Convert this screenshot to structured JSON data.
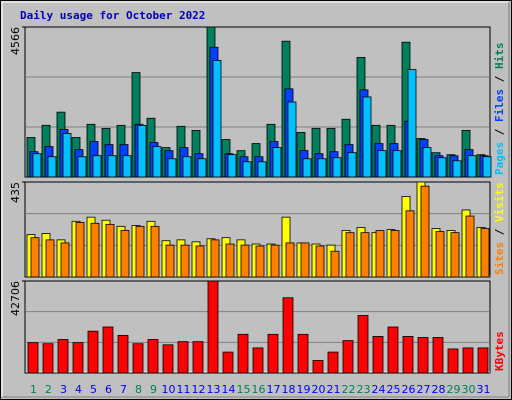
{
  "title": "Daily usage for October 2022",
  "chart_data": [
    {
      "type": "bar",
      "ylim": [
        0,
        4566
      ],
      "yticks": [
        4566
      ],
      "legend_separator": " / ",
      "series": [
        {
          "name": "Hits",
          "color": "#00805c",
          "values": [
            1203,
            1573,
            1974,
            1203,
            1604,
            1481,
            1573,
            3178,
            1789,
            895,
            1543,
            1419,
            4566,
            1141,
            802,
            1018,
            1604,
            4134,
            1357,
            1481,
            1481,
            1758,
            3640,
            1573,
            1573,
            4103,
            1172,
            740,
            679,
            1419,
            679
          ]
        },
        {
          "name": "Files",
          "color": "#0040ff",
          "values": [
            771,
            925,
            1450,
            833,
            1080,
            987,
            987,
            1604,
            1049,
            802,
            895,
            709,
            3949,
            709,
            617,
            617,
            1080,
            2684,
            802,
            709,
            771,
            987,
            2653,
            1018,
            1018,
            1697,
            1141,
            648,
            648,
            833,
            648
          ]
        },
        {
          "name": "Pages",
          "color": "#00c0ff",
          "values": [
            709,
            617,
            1327,
            617,
            648,
            648,
            648,
            1573,
            925,
            555,
            617,
            555,
            3548,
            679,
            463,
            463,
            895,
            2283,
            555,
            555,
            586,
            740,
            2437,
            802,
            802,
            3270,
            895,
            586,
            494,
            648,
            617
          ]
        }
      ]
    },
    {
      "type": "bar",
      "ylim": [
        0,
        435
      ],
      "yticks": [
        435
      ],
      "legend_separator": " / ",
      "series": [
        {
          "name": "Visits",
          "color": "#ffff00",
          "values": [
            194,
            199,
            170,
            255,
            274,
            260,
            232,
            236,
            255,
            166,
            170,
            161,
            175,
            180,
            170,
            151,
            151,
            274,
            156,
            151,
            146,
            213,
            227,
            203,
            217,
            369,
            435,
            222,
            213,
            307,
            227
          ]
        },
        {
          "name": "Sites",
          "color": "#ff8000",
          "values": [
            180,
            170,
            156,
            250,
            246,
            241,
            213,
            232,
            232,
            146,
            146,
            142,
            170,
            151,
            146,
            142,
            146,
            156,
            156,
            142,
            118,
            203,
            203,
            213,
            213,
            303,
            416,
            208,
            203,
            279,
            222
          ]
        }
      ]
    },
    {
      "type": "bar",
      "ylim": [
        0,
        42706
      ],
      "yticks": [
        42706
      ],
      "categories": [
        "1",
        "2",
        "3",
        "4",
        "5",
        "6",
        "7",
        "8",
        "9",
        "10",
        "11",
        "12",
        "13",
        "14",
        "15",
        "16",
        "17",
        "18",
        "19",
        "20",
        "21",
        "22",
        "23",
        "24",
        "25",
        "26",
        "27",
        "28",
        "29",
        "30",
        "31"
      ],
      "category_colors": [
        "#00805c",
        "#00805c",
        "#0000ff",
        "#0000ff",
        "#0000ff",
        "#0000ff",
        "#0000ff",
        "#00805c",
        "#00805c",
        "#0000ff",
        "#0000ff",
        "#0000ff",
        "#0000ff",
        "#0000ff",
        "#00805c",
        "#00805c",
        "#0000ff",
        "#0000ff",
        "#0000ff",
        "#0000ff",
        "#0000ff",
        "#00805c",
        "#00805c",
        "#0000ff",
        "#0000ff",
        "#0000ff",
        "#0000ff",
        "#0000ff",
        "#00805c",
        "#00805c",
        "#0000ff"
      ],
      "series": [
        {
          "name": "KBytes",
          "color": "#ff0000",
          "values": [
            14074,
            13589,
            15530,
            14074,
            19412,
            21353,
            17471,
            13589,
            15530,
            13103,
            14559,
            14559,
            42706,
            9706,
            17956,
            11647,
            17956,
            34942,
            17956,
            5824,
            9706,
            15044,
            26692,
            16985,
            21353,
            16985,
            16500,
            16500,
            11162,
            11647,
            11647
          ]
        }
      ]
    }
  ]
}
